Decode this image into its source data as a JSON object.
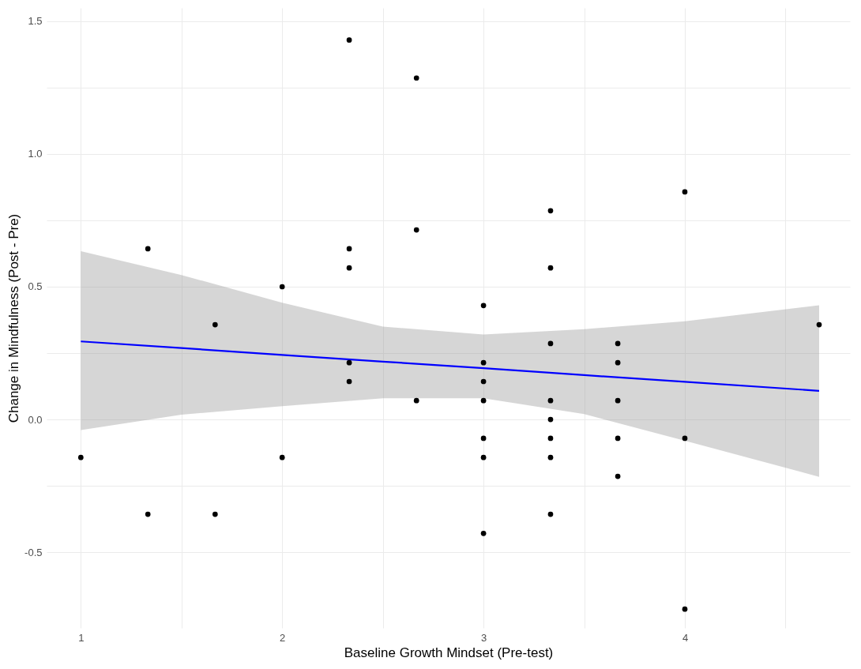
{
  "chart_data": {
    "type": "scatter",
    "xlabel": "Baseline Growth Mindset (Pre-test)",
    "ylabel": "Change in Mindfulness (Post - Pre)",
    "xlim": [
      0.83,
      4.82
    ],
    "ylim": [
      -0.785,
      1.55
    ],
    "xticks": [
      1,
      {
        "value": 1.5,
        "label": null
      },
      2,
      {
        "value": 2.5,
        "label": null
      },
      3,
      {
        "value": 3.5,
        "label": null
      },
      4,
      {
        "value": 4.5,
        "label": null
      }
    ],
    "yticks": [
      -0.5,
      {
        "value": -0.25,
        "label": null
      },
      "0.0",
      {
        "value": 0.25,
        "label": null
      },
      0.5,
      {
        "value": 0.75,
        "label": null
      },
      "1.0",
      {
        "value": 1.25,
        "label": null
      },
      1.5
    ],
    "grid": true,
    "series": [
      {
        "color": "#000000",
        "marker": "circle",
        "x": [
          1,
          1.333,
          1.333,
          1.667,
          1.667,
          2,
          2,
          2.333,
          2.333,
          2.333,
          2.333,
          2.333,
          2.667,
          2.667,
          2.667,
          3,
          3,
          3,
          3,
          3,
          3,
          3,
          3.333,
          3.333,
          3.333,
          3.333,
          3.333,
          3.333,
          3.333,
          3.333,
          3.667,
          3.667,
          3.667,
          3.667,
          3.667,
          4,
          4,
          4,
          4.667
        ],
        "values": [
          -0.143,
          0.643,
          -0.357,
          0.357,
          -0.357,
          0.5,
          -0.143,
          1.429,
          0.643,
          0.571,
          0.214,
          0.143,
          1.286,
          0.714,
          0.071,
          0.429,
          0.214,
          0.143,
          0.071,
          -0.071,
          -0.143,
          -0.429,
          0.786,
          0.571,
          0.286,
          0.071,
          0,
          -0.071,
          -0.143,
          -0.357,
          0.286,
          0.214,
          0.071,
          -0.071,
          -0.214,
          0.857,
          -0.071,
          -0.714,
          0.357
        ]
      },
      {
        "type": "line",
        "color": "#0000ff",
        "marker": "none",
        "x": [
          1,
          1.5,
          2,
          2.5,
          3,
          3.5,
          4,
          4.667
        ],
        "values": [
          0.294,
          0.269,
          0.243,
          0.218,
          0.193,
          0.167,
          0.142,
          0.108
        ],
        "lower": [
          -0.04,
          0.018,
          0.05,
          0.08,
          0.08,
          0.02,
          -0.08,
          -0.216
        ],
        "upper": [
          0.634,
          0.544,
          0.44,
          0.35,
          0.32,
          0.34,
          0.37,
          0.43
        ]
      }
    ]
  }
}
